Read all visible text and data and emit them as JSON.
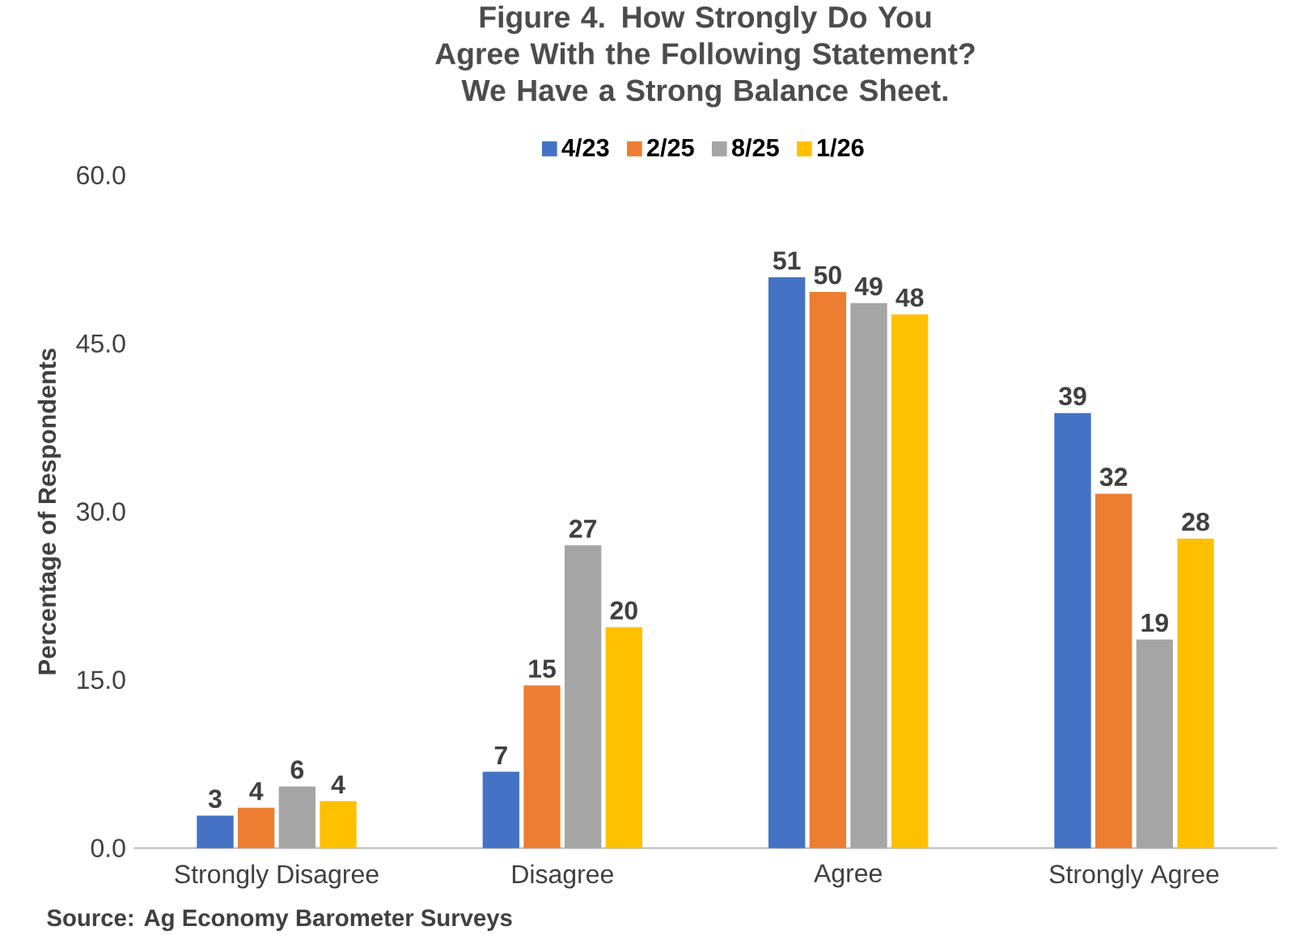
{
  "chart_data": {
    "type": "bar",
    "title": "Figure 4. How Strongly Do You Agree With the Following Statement? We Have a Strong Balance Sheet.",
    "categories": [
      "Strongly Disagree",
      "Disagree",
      "Agree",
      "Strongly Agree"
    ],
    "ylabel": "Percentage of Respondents",
    "ylim": [
      0,
      60
    ],
    "yticks": [
      {
        "value": 0,
        "label": "0.0"
      },
      {
        "value": 15,
        "label": "15.0"
      },
      {
        "value": 30,
        "label": "30.0"
      },
      {
        "value": 45,
        "label": "45.0"
      },
      {
        "value": 60,
        "label": "60.0"
      }
    ],
    "legend": "top",
    "series": [
      {
        "name": "4/23",
        "color": "#4472c4",
        "values": [
          2.9,
          6.8,
          50.9,
          38.8
        ],
        "value_labels": [
          "3",
          "7",
          "51",
          "39"
        ]
      },
      {
        "name": "2/25",
        "color": "#ed7d31",
        "values": [
          3.6,
          14.5,
          49.6,
          31.6
        ],
        "value_labels": [
          "4",
          "15",
          "50",
          "32"
        ]
      },
      {
        "name": "8/25",
        "color": "#a5a5a5",
        "values": [
          5.5,
          27.0,
          48.6,
          18.6
        ],
        "value_labels": [
          "6",
          "27",
          "49",
          "19"
        ]
      },
      {
        "name": "1/26",
        "color": "#ffc000",
        "values": [
          4.2,
          19.7,
          47.6,
          27.6
        ],
        "value_labels": [
          "4",
          "20",
          "48",
          "28"
        ]
      }
    ],
    "annotations": [
      "Source: Ag Economy Barometer Surveys"
    ]
  }
}
